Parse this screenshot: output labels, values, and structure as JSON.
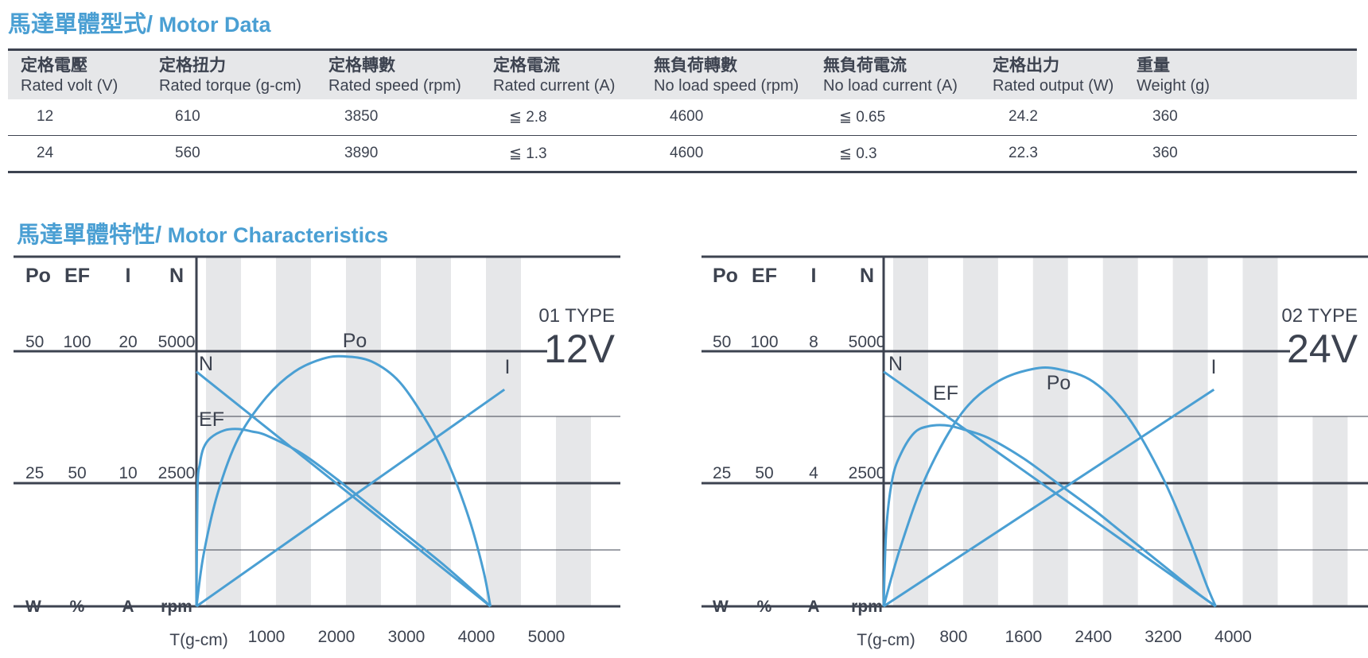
{
  "motor_data": {
    "title_zh": "馬達單體型式/",
    "title_en": " Motor Data",
    "columns": [
      {
        "zh": "定格電壓",
        "en": "Rated volt (V)"
      },
      {
        "zh": "定格扭力",
        "en": "Rated torque (g-cm)"
      },
      {
        "zh": "定格轉數",
        "en": "Rated speed (rpm)"
      },
      {
        "zh": "定格電流",
        "en": "Rated current (A)"
      },
      {
        "zh": "無負荷轉數",
        "en": "No load speed (rpm)"
      },
      {
        "zh": "無負荷電流",
        "en": "No load current (A)"
      },
      {
        "zh": "定格出力",
        "en": "Rated output (W)"
      },
      {
        "zh": "重量",
        "en": "Weight (g)"
      }
    ],
    "rows": [
      [
        "12",
        "610",
        "3850",
        "≦ 2.8",
        "4600",
        "≦ 0.65",
        "24.2",
        "360"
      ],
      [
        "24",
        "560",
        "3890",
        "≦ 1.3",
        "4600",
        "≦ 0.3",
        "22.3",
        "360"
      ]
    ]
  },
  "characteristics": {
    "title_zh": "馬達單體特性/",
    "title_en": " Motor Characteristics"
  },
  "chart_data": [
    {
      "type": "line",
      "type_label": "01 TYPE",
      "voltage_label": "12V",
      "xlabel": "T(g-cm)",
      "x_ticks": [
        1000,
        2000,
        3000,
        4000,
        5000
      ],
      "xlim": [
        0,
        5800
      ],
      "axis_headers": [
        "Po",
        "EF",
        "I",
        "N"
      ],
      "axis_units": [
        "W",
        "%",
        "A",
        "rpm"
      ],
      "axis_ticks": {
        "Po": [
          "25",
          "50"
        ],
        "EF": [
          "50",
          "100"
        ],
        "I": [
          "10",
          "20"
        ],
        "N": [
          "2500",
          "5000"
        ]
      },
      "grid": true,
      "series": [
        {
          "name": "N",
          "unit": "rpm",
          "x": [
            0,
            4200
          ],
          "values": [
            4600,
            0
          ]
        },
        {
          "name": "I",
          "unit": "A",
          "x": [
            0,
            4400
          ],
          "values": [
            0,
            17
          ]
        },
        {
          "name": "Po",
          "unit": "W",
          "x": [
            0,
            100,
            300,
            600,
            1000,
            1400,
            1800,
            2100,
            2500,
            2900,
            3300,
            3600,
            3900,
            4100,
            4200
          ],
          "values": [
            0,
            10,
            22,
            33,
            41,
            46,
            48.5,
            49,
            48,
            44,
            36,
            28,
            17,
            7,
            0
          ]
        },
        {
          "name": "EF",
          "unit": "%",
          "x": [
            0,
            15,
            50,
            100,
            200,
            400,
            600,
            800,
            1000,
            1500,
            2000,
            2500,
            3000,
            3500,
            4000,
            4200
          ],
          "values": [
            0,
            46,
            56,
            62,
            66,
            69,
            69.5,
            68.5,
            67,
            60,
            50,
            39,
            28,
            17,
            5,
            0
          ]
        }
      ]
    },
    {
      "type": "line",
      "type_label": "02 TYPE",
      "voltage_label": "24V",
      "xlabel": "T(g-cm)",
      "x_ticks": [
        800,
        1600,
        2400,
        3200,
        4000
      ],
      "xlim": [
        0,
        5500
      ],
      "axis_headers": [
        "Po",
        "EF",
        "I",
        "N"
      ],
      "axis_units": [
        "W",
        "%",
        "A",
        "rpm"
      ],
      "axis_ticks": {
        "Po": [
          "25",
          "50"
        ],
        "EF": [
          "50",
          "100"
        ],
        "I": [
          "4",
          "8"
        ],
        "N": [
          "2500",
          "5000"
        ]
      },
      "grid": true,
      "series": [
        {
          "name": "N",
          "unit": "rpm",
          "x": [
            0,
            3800
          ],
          "values": [
            4600,
            0
          ]
        },
        {
          "name": "I",
          "unit": "A",
          "x": [
            0,
            3780
          ],
          "values": [
            0,
            6.8
          ]
        },
        {
          "name": "Po",
          "unit": "W",
          "x": [
            0,
            200,
            500,
            900,
            1300,
            1700,
            2000,
            2400,
            2800,
            3200,
            3500,
            3700,
            3800
          ],
          "values": [
            0,
            12,
            26,
            38,
            44,
            46.5,
            46.5,
            44,
            37,
            25,
            13,
            4,
            0
          ]
        },
        {
          "name": "EF",
          "unit": "%",
          "x": [
            0,
            30,
            100,
            200,
            350,
            500,
            700,
            900,
            1200,
            1600,
            2000,
            2400,
            2800,
            3200,
            3600,
            3800
          ],
          "values": [
            0,
            30,
            50,
            60,
            68,
            70.5,
            71,
            69.5,
            66,
            58,
            48,
            38,
            27,
            16,
            5,
            0
          ]
        }
      ]
    }
  ]
}
